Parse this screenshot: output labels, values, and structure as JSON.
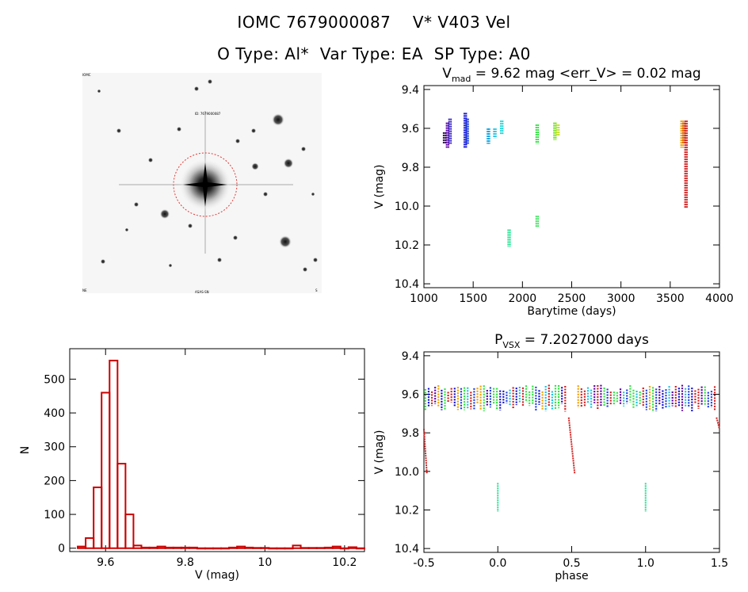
{
  "header": {
    "line1": "IOMC 7679000087    V* V403 Vel",
    "line2": "O Type: Al*  Var Type: EA  SP Type: A0"
  },
  "image_panel": {
    "star_label": "ID: 7679000087",
    "corner_top_left": "IOMC",
    "corner_bottom_left": "NE",
    "corner_bottom_center": "ASAS-SN",
    "corner_bottom_right": "S",
    "colors": {
      "circle": "#e53935"
    }
  },
  "chart_data": [
    {
      "id": "lightcurve",
      "type": "scatter",
      "title_main": "V",
      "title_sub": "mad",
      "title_rest": " = 9.62 mag <err_V> = 0.02 mag",
      "xlabel": "Barytime (days)",
      "ylabel": "V (mag)",
      "xlim": [
        1000,
        4000
      ],
      "ylim": [
        10.42,
        9.38
      ],
      "xticks": [
        1000,
        1500,
        2000,
        2500,
        3000,
        3500,
        4000
      ],
      "yticks": [
        9.4,
        9.6,
        9.8,
        10.0,
        10.2,
        10.4
      ],
      "groups": [
        {
          "x": 1210,
          "y": [
            9.62,
            9.68
          ],
          "color": "#200040"
        },
        {
          "x": 1240,
          "y": [
            9.57,
            9.7
          ],
          "color": "#5a00a0"
        },
        {
          "x": 1265,
          "y": [
            9.55,
            9.68
          ],
          "color": "#3020c0"
        },
        {
          "x": 1420,
          "y": [
            9.52,
            9.7
          ],
          "color": "#1010d0"
        },
        {
          "x": 1440,
          "y": [
            9.55,
            9.68
          ],
          "color": "#2040e0"
        },
        {
          "x": 1655,
          "y": [
            9.6,
            9.68
          ],
          "color": "#00a0e0"
        },
        {
          "x": 1720,
          "y": [
            9.6,
            9.65
          ],
          "color": "#20c0e0"
        },
        {
          "x": 1790,
          "y": [
            9.56,
            9.63
          ],
          "color": "#20d8d8"
        },
        {
          "x": 1865,
          "y": [
            10.12,
            10.21
          ],
          "color": "#20e090"
        },
        {
          "x": 2150,
          "y": [
            9.58,
            9.68
          ],
          "color": "#30e040"
        },
        {
          "x": 2150,
          "y": [
            10.05,
            10.11
          ],
          "color": "#40e060"
        },
        {
          "x": 2330,
          "y": [
            9.57,
            9.66
          ],
          "color": "#70e020"
        },
        {
          "x": 2360,
          "y": [
            9.58,
            9.64
          ],
          "color": "#c0e020"
        },
        {
          "x": 3620,
          "y": [
            9.56,
            9.7
          ],
          "color": "#f0a000"
        },
        {
          "x": 3640,
          "y": [
            9.57,
            9.68
          ],
          "color": "#e06000"
        },
        {
          "x": 3660,
          "y": [
            9.56,
            10.01
          ],
          "color": "#d02020"
        }
      ]
    },
    {
      "id": "histogram",
      "type": "bar",
      "xlabel": "V (mag)",
      "ylabel": "N",
      "xlim": [
        9.51,
        10.25
      ],
      "ylim": [
        -10,
        590
      ],
      "xticks": [
        9.6,
        9.8,
        10.0,
        10.2
      ],
      "yticks": [
        0,
        100,
        200,
        300,
        400,
        500
      ],
      "bin_width": 0.02,
      "bin_start": 9.53,
      "values": [
        5,
        30,
        180,
        460,
        555,
        250,
        100,
        8,
        2,
        2,
        5,
        2,
        2,
        2,
        2,
        0,
        0,
        0,
        0,
        2,
        5,
        2,
        1,
        1,
        0,
        0,
        0,
        8,
        1,
        1,
        1,
        2,
        5,
        0,
        3,
        0
      ],
      "color": "#cc0000"
    },
    {
      "id": "phased",
      "type": "scatter",
      "title_main": "P",
      "title_sub": "VSX",
      "title_rest": " = 7.2027000 days",
      "xlabel": "phase",
      "ylabel": "V (mag)",
      "xlim": [
        -0.5,
        1.5
      ],
      "ylim": [
        10.42,
        9.38
      ],
      "xticks": [
        -0.5,
        0.0,
        0.5,
        1.0,
        1.5
      ],
      "xticklabels": [
        "-0.5",
        "0.0",
        "0.5",
        "1.0",
        "1.5"
      ],
      "yticks": [
        9.4,
        9.6,
        9.8,
        10.0,
        10.2,
        10.4
      ],
      "eclipses": [
        {
          "x": [
            -0.5,
            -0.48
          ],
          "y": [
            9.78,
            10.01
          ],
          "color": "#d02020"
        },
        {
          "x": [
            0.48,
            0.52
          ],
          "y": [
            9.72,
            10.01
          ],
          "color": "#d02020"
        },
        {
          "x": [
            1.48,
            1.5
          ],
          "y": [
            9.72,
            9.78
          ],
          "color": "#d02020"
        },
        {
          "x": [
            0.0,
            0.0
          ],
          "y": [
            10.06,
            10.21
          ],
          "color": "#20e090"
        },
        {
          "x": [
            1.0,
            1.0
          ],
          "y": [
            10.06,
            10.21
          ],
          "color": "#20e090"
        }
      ],
      "band": {
        "y": [
          9.55,
          9.69
        ]
      },
      "palette": [
        "#d02020",
        "#1010d0",
        "#5a00a0",
        "#30e040",
        "#f0a000",
        "#20c0e0",
        "#2040e0"
      ]
    }
  ]
}
